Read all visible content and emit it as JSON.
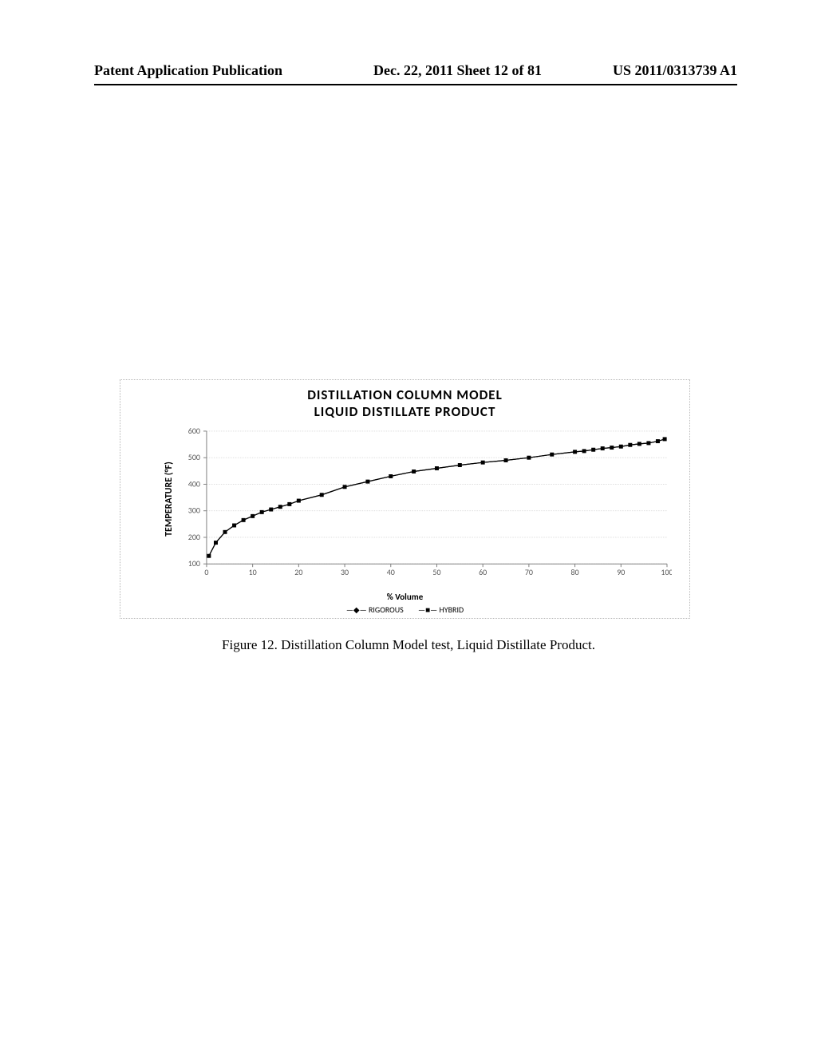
{
  "header": {
    "left": "Patent Application Publication",
    "center": "Dec. 22, 2011  Sheet 12 of 81",
    "right": "US 2011/0313739 A1"
  },
  "chart": {
    "title": "DISTILLATION COLUMN MODEL",
    "subtitle": "LIQUID DISTILLATE PRODUCT",
    "y_label": "TEMPERATURE (°F)",
    "x_label": "% Volume",
    "type": "line",
    "xlim": [
      0,
      100
    ],
    "ylim": [
      100,
      600
    ],
    "xtick_step": 10,
    "ytick_step": 100,
    "xticks": [
      0,
      10,
      20,
      30,
      40,
      50,
      60,
      70,
      80,
      90,
      100
    ],
    "yticks": [
      100,
      200,
      300,
      400,
      500,
      600
    ],
    "grid_color": "#d9d9d9",
    "grid_style": "dotted",
    "axis_color": "#808080",
    "tick_label_color": "#595959",
    "background_color": "#ffffff",
    "tick_fontsize": 10,
    "label_fontsize": 12,
    "title_fontsize": 17,
    "series": [
      {
        "name": "RIGOROUS",
        "marker": "diamond",
        "marker_size": 5,
        "line_color": "#000000",
        "line_width": 1.2,
        "data": [
          {
            "x": 0.5,
            "y": 130
          },
          {
            "x": 2,
            "y": 180
          },
          {
            "x": 4,
            "y": 220
          },
          {
            "x": 6,
            "y": 245
          },
          {
            "x": 8,
            "y": 265
          },
          {
            "x": 10,
            "y": 280
          },
          {
            "x": 12,
            "y": 295
          },
          {
            "x": 14,
            "y": 305
          },
          {
            "x": 16,
            "y": 315
          },
          {
            "x": 18,
            "y": 325
          },
          {
            "x": 20,
            "y": 338
          },
          {
            "x": 25,
            "y": 360
          },
          {
            "x": 30,
            "y": 390
          },
          {
            "x": 35,
            "y": 410
          },
          {
            "x": 40,
            "y": 430
          },
          {
            "x": 45,
            "y": 448
          },
          {
            "x": 50,
            "y": 460
          },
          {
            "x": 55,
            "y": 472
          },
          {
            "x": 60,
            "y": 482
          },
          {
            "x": 65,
            "y": 490
          },
          {
            "x": 70,
            "y": 500
          },
          {
            "x": 75,
            "y": 512
          },
          {
            "x": 80,
            "y": 522
          },
          {
            "x": 82,
            "y": 525
          },
          {
            "x": 84,
            "y": 530
          },
          {
            "x": 86,
            "y": 535
          },
          {
            "x": 88,
            "y": 538
          },
          {
            "x": 90,
            "y": 542
          },
          {
            "x": 92,
            "y": 548
          },
          {
            "x": 94,
            "y": 552
          },
          {
            "x": 96,
            "y": 555
          },
          {
            "x": 98,
            "y": 562
          },
          {
            "x": 99.5,
            "y": 570
          }
        ]
      },
      {
        "name": "HYBRID",
        "marker": "square",
        "marker_size": 5,
        "line_color": "#000000",
        "line_width": 1.2,
        "data": [
          {
            "x": 0.5,
            "y": 130
          },
          {
            "x": 2,
            "y": 180
          },
          {
            "x": 4,
            "y": 220
          },
          {
            "x": 6,
            "y": 245
          },
          {
            "x": 8,
            "y": 265
          },
          {
            "x": 10,
            "y": 280
          },
          {
            "x": 12,
            "y": 295
          },
          {
            "x": 14,
            "y": 305
          },
          {
            "x": 16,
            "y": 315
          },
          {
            "x": 18,
            "y": 325
          },
          {
            "x": 20,
            "y": 338
          },
          {
            "x": 25,
            "y": 360
          },
          {
            "x": 30,
            "y": 390
          },
          {
            "x": 35,
            "y": 410
          },
          {
            "x": 40,
            "y": 430
          },
          {
            "x": 45,
            "y": 448
          },
          {
            "x": 50,
            "y": 460
          },
          {
            "x": 55,
            "y": 472
          },
          {
            "x": 60,
            "y": 482
          },
          {
            "x": 65,
            "y": 490
          },
          {
            "x": 70,
            "y": 500
          },
          {
            "x": 75,
            "y": 512
          },
          {
            "x": 80,
            "y": 522
          },
          {
            "x": 82,
            "y": 525
          },
          {
            "x": 84,
            "y": 530
          },
          {
            "x": 86,
            "y": 535
          },
          {
            "x": 88,
            "y": 538
          },
          {
            "x": 90,
            "y": 542
          },
          {
            "x": 92,
            "y": 548
          },
          {
            "x": 94,
            "y": 552
          },
          {
            "x": 96,
            "y": 555
          },
          {
            "x": 98,
            "y": 562
          },
          {
            "x": 99.5,
            "y": 570
          }
        ]
      }
    ],
    "legend": {
      "items": [
        {
          "label": "RIGOROUS",
          "marker": "diamond",
          "prefix": "—◆—"
        },
        {
          "label": "HYBRID",
          "marker": "square",
          "prefix": "—■—"
        }
      ],
      "fontsize": 10
    }
  },
  "caption": "Figure 12. Distillation Column Model test, Liquid Distillate Product."
}
